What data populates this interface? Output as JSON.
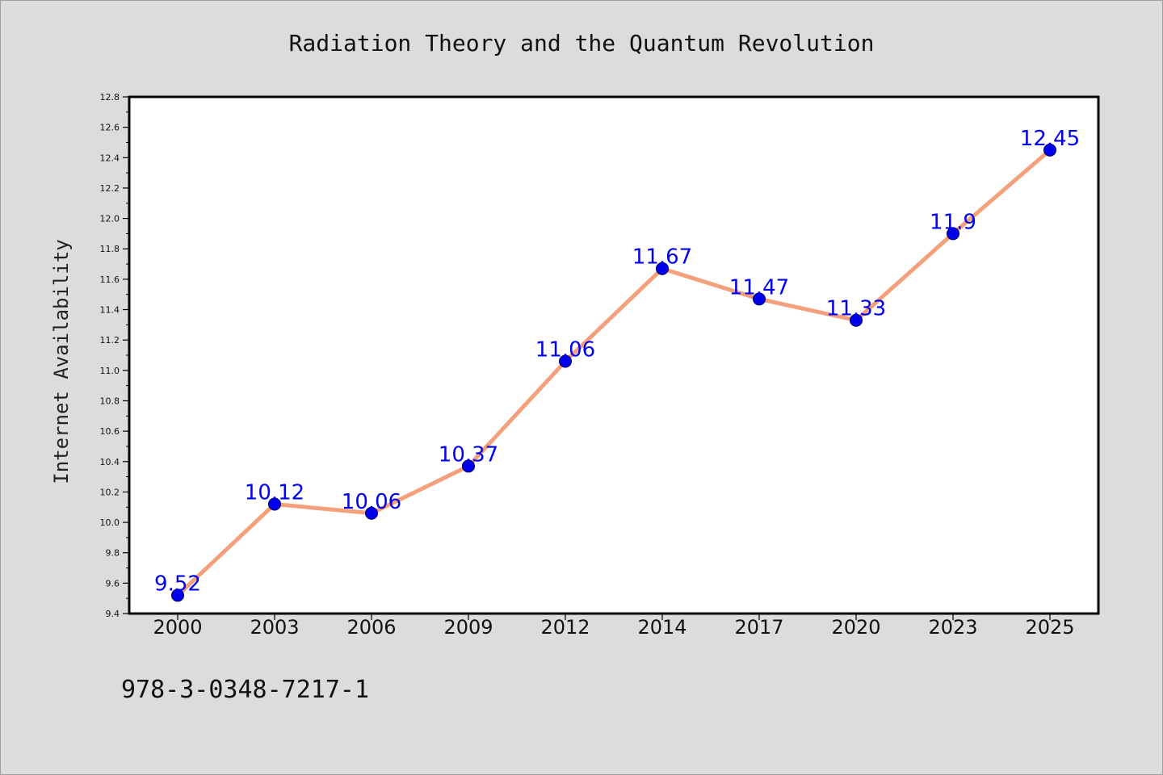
{
  "chart_data": {
    "type": "line",
    "title": "Radiation Theory and the Quantum Revolution",
    "xlabel": "",
    "ylabel": "Internet Availability",
    "categories": [
      "2000",
      "2003",
      "2006",
      "2009",
      "2012",
      "2014",
      "2017",
      "2020",
      "2023",
      "2025"
    ],
    "series": [
      {
        "values": [
          9.52,
          10.12,
          10.06,
          10.37,
          11.06,
          11.67,
          11.47,
          11.33,
          11.9,
          12.45
        ],
        "data_labels": [
          "9.52",
          "10.12",
          "10.06",
          "10.37",
          "11.06",
          "11.67",
          "11.47",
          "11.33",
          "11.9",
          "12.45"
        ],
        "line_color": "#f4a07c",
        "marker_color": "#0000ee"
      }
    ],
    "ylim": [
      9.4,
      12.8
    ],
    "yticks": [
      "9.4",
      "9.6",
      "9.8",
      "10.0",
      "10.2",
      "10.4",
      "10.6",
      "10.8",
      "11.0",
      "11.2",
      "11.4",
      "11.6",
      "11.8",
      "12.0",
      "12.2",
      "12.4",
      "12.6",
      "12.8"
    ],
    "grid": false,
    "legend": "none",
    "background_color": "#dcdcdc",
    "plot_background_color": "#ffffff",
    "label_color": "#0000ee"
  },
  "footer": {
    "isbn": "978-3-0348-7217-1"
  }
}
